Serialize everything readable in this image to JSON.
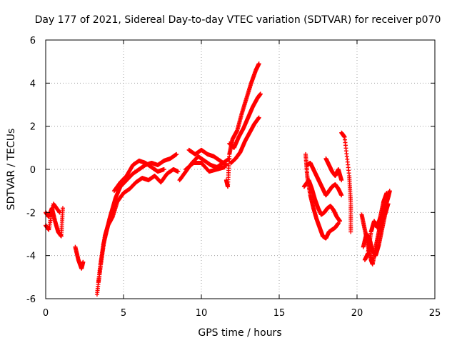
{
  "chart_data": {
    "type": "scatter",
    "title": "Day 177 of 2021, Sidereal Day-to-day VTEC variation (SDTVAR) for receiver p070",
    "xlabel": "GPS time / hours",
    "ylabel": "SDTVAR / TECUs",
    "xlim": [
      0,
      25
    ],
    "ylim": [
      -6,
      6
    ],
    "xticks": [
      0,
      5,
      10,
      15,
      20,
      25
    ],
    "yticks": [
      -6,
      -4,
      -2,
      0,
      2,
      4,
      6
    ],
    "grid": true,
    "marker": "+",
    "color": "#ff0000",
    "series_tracks": [
      [
        [
          0.0,
          -2.0
        ],
        [
          0.2,
          -2.2
        ],
        [
          0.4,
          -1.8
        ],
        [
          0.6,
          -2.4
        ],
        [
          0.8,
          -2.9
        ],
        [
          1.0,
          -3.1
        ],
        [
          1.1,
          -1.8
        ]
      ],
      [
        [
          0.0,
          -2.6
        ],
        [
          0.2,
          -2.8
        ],
        [
          0.5,
          -1.6
        ],
        [
          0.9,
          -2.0
        ]
      ],
      [
        [
          1.9,
          -3.6
        ],
        [
          2.1,
          -4.2
        ],
        [
          2.3,
          -4.6
        ],
        [
          2.4,
          -4.3
        ]
      ],
      [
        [
          3.3,
          -5.8
        ],
        [
          3.5,
          -4.5
        ],
        [
          3.7,
          -3.5
        ],
        [
          3.9,
          -2.9
        ],
        [
          4.1,
          -2.3
        ],
        [
          4.3,
          -1.8
        ],
        [
          4.5,
          -1.3
        ],
        [
          4.8,
          -0.8
        ],
        [
          5.2,
          -0.5
        ],
        [
          5.6,
          -0.2
        ],
        [
          6.0,
          0.0
        ],
        [
          6.4,
          0.2
        ],
        [
          6.8,
          0.3
        ],
        [
          7.2,
          0.2
        ],
        [
          7.6,
          0.4
        ],
        [
          8.0,
          0.5
        ],
        [
          8.4,
          0.7
        ]
      ],
      [
        [
          3.4,
          -5.2
        ],
        [
          3.6,
          -4.1
        ],
        [
          3.8,
          -3.1
        ],
        [
          4.0,
          -2.6
        ],
        [
          4.3,
          -2.2
        ],
        [
          4.6,
          -1.5
        ],
        [
          5.0,
          -1.1
        ],
        [
          5.4,
          -0.9
        ],
        [
          5.8,
          -0.6
        ],
        [
          6.2,
          -0.4
        ],
        [
          6.6,
          -0.5
        ],
        [
          7.0,
          -0.3
        ],
        [
          7.4,
          -0.6
        ],
        [
          7.8,
          -0.2
        ],
        [
          8.2,
          0.0
        ],
        [
          8.5,
          -0.1
        ]
      ],
      [
        [
          4.4,
          -1.0
        ],
        [
          4.8,
          -0.6
        ],
        [
          5.2,
          -0.3
        ],
        [
          5.6,
          0.2
        ],
        [
          6.0,
          0.4
        ],
        [
          6.4,
          0.3
        ],
        [
          6.8,
          0.1
        ],
        [
          7.2,
          -0.1
        ],
        [
          7.6,
          0.0
        ]
      ],
      [
        [
          8.6,
          -0.5
        ],
        [
          9.0,
          -0.1
        ],
        [
          9.4,
          0.3
        ],
        [
          9.8,
          0.6
        ],
        [
          10.2,
          0.4
        ],
        [
          10.6,
          0.2
        ],
        [
          11.0,
          0.1
        ],
        [
          11.4,
          0.3
        ],
        [
          11.8,
          0.5
        ]
      ],
      [
        [
          9.2,
          0.9
        ],
        [
          9.6,
          0.7
        ],
        [
          10.0,
          0.9
        ],
        [
          10.4,
          0.7
        ],
        [
          10.8,
          0.6
        ],
        [
          11.2,
          0.4
        ],
        [
          11.6,
          0.2
        ]
      ],
      [
        [
          9.0,
          0.0
        ],
        [
          9.5,
          0.3
        ],
        [
          10.0,
          0.3
        ],
        [
          10.5,
          -0.1
        ],
        [
          11.0,
          0.0
        ],
        [
          11.5,
          0.1
        ]
      ],
      [
        [
          11.6,
          -0.5
        ],
        [
          11.7,
          -0.8
        ],
        [
          11.8,
          0.7
        ],
        [
          12.0,
          1.4
        ],
        [
          12.3,
          1.8
        ],
        [
          12.6,
          2.6
        ],
        [
          12.9,
          3.3
        ],
        [
          13.2,
          4.0
        ],
        [
          13.5,
          4.6
        ],
        [
          13.7,
          4.9
        ]
      ],
      [
        [
          11.8,
          1.2
        ],
        [
          12.1,
          1.0
        ],
        [
          12.4,
          1.5
        ],
        [
          12.7,
          1.9
        ],
        [
          13.0,
          2.4
        ],
        [
          13.3,
          2.9
        ],
        [
          13.6,
          3.3
        ],
        [
          13.8,
          3.5
        ]
      ],
      [
        [
          11.9,
          0.3
        ],
        [
          12.2,
          0.5
        ],
        [
          12.5,
          0.8
        ],
        [
          12.8,
          1.3
        ],
        [
          13.1,
          1.7
        ],
        [
          13.4,
          2.1
        ],
        [
          13.7,
          2.4
        ]
      ],
      [
        [
          16.7,
          0.7
        ],
        [
          16.8,
          -0.3
        ],
        [
          17.0,
          -1.2
        ],
        [
          17.2,
          -1.8
        ],
        [
          17.4,
          -2.3
        ],
        [
          17.6,
          -2.7
        ],
        [
          17.8,
          -3.1
        ],
        [
          18.0,
          -3.2
        ],
        [
          18.2,
          -2.9
        ],
        [
          18.4,
          -2.8
        ],
        [
          18.6,
          -2.7
        ],
        [
          18.8,
          -2.5
        ]
      ],
      [
        [
          16.6,
          -0.8
        ],
        [
          16.9,
          -0.5
        ],
        [
          17.1,
          -0.9
        ],
        [
          17.3,
          -1.4
        ],
        [
          17.5,
          -1.8
        ],
        [
          17.7,
          -2.1
        ],
        [
          17.9,
          -2.0
        ],
        [
          18.1,
          -1.8
        ],
        [
          18.3,
          -1.7
        ],
        [
          18.5,
          -1.9
        ],
        [
          18.7,
          -2.2
        ],
        [
          18.9,
          -2.4
        ]
      ],
      [
        [
          16.8,
          0.2
        ],
        [
          17.0,
          0.3
        ],
        [
          17.2,
          0.0
        ],
        [
          17.4,
          -0.3
        ],
        [
          17.6,
          -0.6
        ],
        [
          17.8,
          -0.9
        ],
        [
          18.0,
          -1.2
        ],
        [
          18.2,
          -1.0
        ],
        [
          18.4,
          -0.8
        ],
        [
          18.6,
          -0.7
        ],
        [
          18.8,
          -0.9
        ],
        [
          19.0,
          -1.2
        ]
      ],
      [
        [
          18.0,
          0.5
        ],
        [
          18.2,
          0.2
        ],
        [
          18.4,
          -0.1
        ],
        [
          18.6,
          -0.3
        ],
        [
          18.8,
          0.0
        ],
        [
          19.0,
          -0.5
        ]
      ],
      [
        [
          19.0,
          1.7
        ],
        [
          19.2,
          1.5
        ],
        [
          19.5,
          -0.3
        ],
        [
          19.6,
          -1.6
        ],
        [
          19.6,
          -2.9
        ]
      ],
      [
        [
          20.3,
          -2.1
        ],
        [
          20.5,
          -2.8
        ],
        [
          20.7,
          -3.5
        ],
        [
          20.9,
          -4.2
        ],
        [
          21.0,
          -4.4
        ],
        [
          21.2,
          -3.6
        ],
        [
          21.4,
          -2.9
        ],
        [
          21.6,
          -2.3
        ],
        [
          21.8,
          -1.8
        ],
        [
          22.0,
          -1.3
        ],
        [
          22.1,
          -1.0
        ]
      ],
      [
        [
          20.4,
          -3.6
        ],
        [
          20.6,
          -3.0
        ],
        [
          20.8,
          -3.2
        ],
        [
          21.0,
          -3.8
        ],
        [
          21.2,
          -4.0
        ],
        [
          21.4,
          -3.5
        ],
        [
          21.6,
          -2.8
        ],
        [
          21.8,
          -2.1
        ],
        [
          22.0,
          -1.6
        ]
      ],
      [
        [
          20.5,
          -4.2
        ],
        [
          20.7,
          -3.9
        ],
        [
          20.9,
          -2.9
        ],
        [
          21.1,
          -2.4
        ],
        [
          21.3,
          -2.7
        ],
        [
          21.5,
          -2.2
        ],
        [
          21.7,
          -1.5
        ],
        [
          21.9,
          -1.1
        ]
      ]
    ]
  }
}
